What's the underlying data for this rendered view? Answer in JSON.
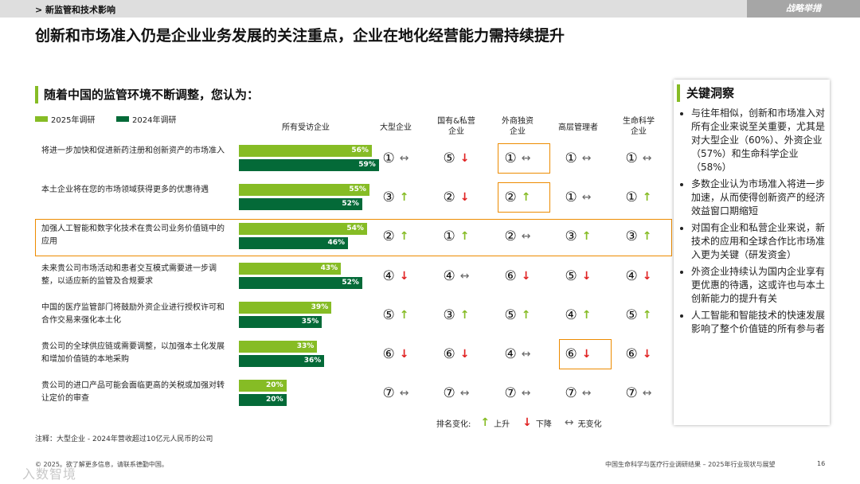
{
  "header": {
    "breadcrumb": "> 新监管和技术影响",
    "tag": "战略举措"
  },
  "title": "创新和市场准入仍是企业业务发展的关注重点，企业在地化经营能力需持续提升",
  "subtitle": "随着中国的监管环境不断调整，您认为：",
  "legend": {
    "y2025": "2025年调研",
    "y2024": "2024年调研"
  },
  "colors": {
    "y2025": "#86bc25",
    "y2024": "#046a38",
    "highlight": "#ed8b00",
    "down": "#e02020"
  },
  "columns": [
    "所有受访企业",
    "大型企业",
    "国有&私营\n企业",
    "外商独资\n企业",
    "高层管理者",
    "生命科学\n企业"
  ],
  "rows": [
    {
      "label": "将进一步加快和促进新药注册和创新资产的市场准入",
      "v2025": 56,
      "v2024": 59,
      "l2025": "56%",
      "l2024": "59%",
      "ranks": [
        [
          "①",
          "same"
        ],
        [
          "⑤",
          "down"
        ],
        [
          "①",
          "same"
        ],
        [
          "①",
          "same"
        ],
        [
          "①",
          "same"
        ]
      ]
    },
    {
      "label": "本土企业将在您的市场领域获得更多的优惠待遇",
      "v2025": 55,
      "v2024": 52,
      "l2025": "55%",
      "l2024": "52%",
      "ranks": [
        [
          "③",
          "up"
        ],
        [
          "②",
          "down"
        ],
        [
          "②",
          "up"
        ],
        [
          "①",
          "same"
        ],
        [
          "①",
          "up"
        ]
      ]
    },
    {
      "label": "加强人工智能和数字化技术在贵公司业务价值链中的应用",
      "v2025": 54,
      "v2024": 46,
      "l2025": "54%",
      "l2024": "46%",
      "ranks": [
        [
          "②",
          "up"
        ],
        [
          "①",
          "up"
        ],
        [
          "②",
          "same"
        ],
        [
          "③",
          "up"
        ],
        [
          "③",
          "up"
        ]
      ]
    },
    {
      "label": "未来贵公司市场活动和患者交互模式需要进一步调整，以适应新的监管及合规要求",
      "v2025": 43,
      "v2024": 52,
      "l2025": "43%",
      "l2024": "52%",
      "ranks": [
        [
          "④",
          "down"
        ],
        [
          "④",
          "same"
        ],
        [
          "⑥",
          "down"
        ],
        [
          "⑤",
          "down"
        ],
        [
          "④",
          "down"
        ]
      ]
    },
    {
      "label": "中国的医疗监管部门将鼓励外资企业进行授权许可和合作交易来强化本土化",
      "v2025": 39,
      "v2024": 35,
      "l2025": "39%",
      "l2024": "35%",
      "ranks": [
        [
          "⑤",
          "up"
        ],
        [
          "③",
          "up"
        ],
        [
          "⑤",
          "up"
        ],
        [
          "④",
          "up"
        ],
        [
          "⑤",
          "up"
        ]
      ]
    },
    {
      "label": "贵公司的全球供应链或需要调整，以加强本土化发展和增加价值链的本地采购",
      "v2025": 33,
      "v2024": 36,
      "l2025": "33%",
      "l2024": "36%",
      "ranks": [
        [
          "⑥",
          "down"
        ],
        [
          "⑥",
          "down"
        ],
        [
          "④",
          "same"
        ],
        [
          "⑥",
          "down"
        ],
        [
          "⑥",
          "down"
        ]
      ]
    },
    {
      "label": "贵公司的进口产品可能会面临更高的关税或加强对转让定价的审查",
      "v2025": 20,
      "v2024": 20,
      "l2025": "20%",
      "l2024": "20%",
      "ranks": [
        [
          "⑦",
          "same"
        ],
        [
          "⑦",
          "same"
        ],
        [
          "⑦",
          "same"
        ],
        [
          "⑦",
          "same"
        ],
        [
          "⑦",
          "same"
        ]
      ]
    }
  ],
  "rank_legend": {
    "label": "排名变化:",
    "up": "上升",
    "down": "下降",
    "same": "无变化"
  },
  "panel": {
    "title": "关键洞察",
    "bullets": [
      "与往年相似，创新和市场准入对所有企业来说至关重要，尤其是对大型企业（60%）、外资企业（57%）和生命科学企业（58%）",
      "多数企业认为市场准入将进一步加速，从而使得创新资产的经济效益窗口期缩短",
      "对国有企业和私营企业来说，新技术的应用和全球合作比市场准入更为关键（研发资金）",
      "外资企业持续认为国内企业享有更优惠的待遇，这或许也与本土创新能力的提升有关",
      "人工智能和智能技术的快速发展影响了整个价值链的所有参与者"
    ]
  },
  "note": "注释：大型企业 - 2024年营收超过10亿元人民币的公司",
  "footer": {
    "left": "© 2025。欲了解更多信息，请联系德勤中国。",
    "right": "中国生命科学与医疗行业调研结果 – 2025年行业现状与展望",
    "page": "16"
  },
  "watermark": "入数智境"
}
